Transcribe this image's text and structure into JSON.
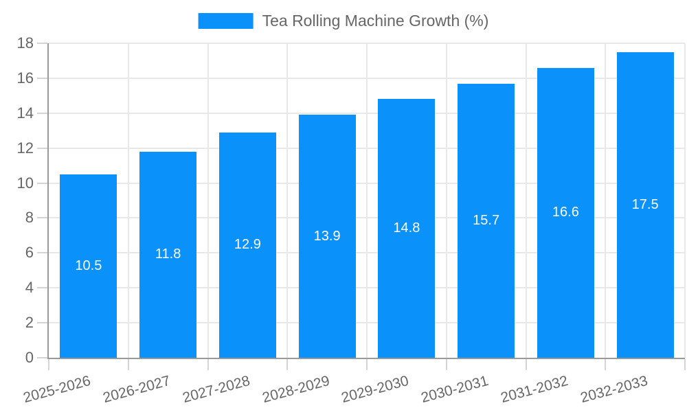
{
  "chart_data": {
    "type": "bar",
    "title": "",
    "legend": {
      "label": "Tea Rolling Machine Growth (%)",
      "position": "top-center"
    },
    "categories": [
      "2025-2026",
      "2026-2027",
      "2027-2028",
      "2028-2029",
      "2029-2030",
      "2030-2031",
      "2031-2032",
      "2032-2033"
    ],
    "series": [
      {
        "name": "Tea Rolling Machine Growth (%)",
        "values": [
          10.5,
          11.8,
          12.9,
          13.9,
          14.8,
          15.7,
          16.6,
          17.5
        ]
      }
    ],
    "bar_labels": [
      "10.5",
      "11.8",
      "12.9",
      "13.9",
      "14.8",
      "15.7",
      "16.6",
      "17.5"
    ],
    "xlabel": "",
    "ylabel": "",
    "ylim": [
      0,
      18
    ],
    "yticks": [
      0,
      2,
      4,
      6,
      8,
      10,
      12,
      14,
      16,
      18
    ],
    "grid": true,
    "x_label_rotation_deg": -15,
    "colors": {
      "bar": "#0b91fa",
      "bar_label": "#ffffff",
      "axis_label": "#666666",
      "axis_line": "#999999",
      "gridline": "#e8e8e8",
      "tick": "#d4d4d4",
      "background": "#ffffff"
    }
  }
}
